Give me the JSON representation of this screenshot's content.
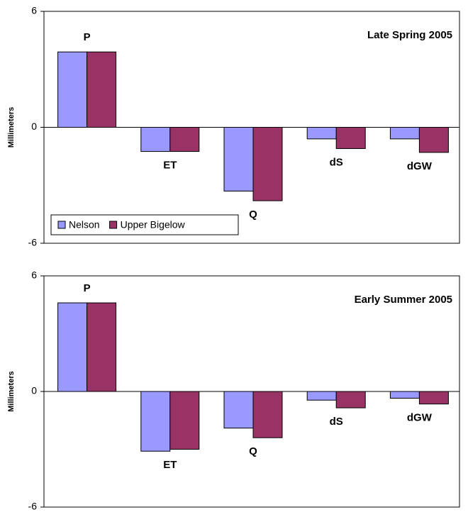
{
  "chart_data": [
    {
      "type": "bar",
      "title": "Late Spring 2005",
      "y_label": "Millimeters",
      "categories": [
        "P",
        "ET",
        "Q",
        "dS",
        "dGW"
      ],
      "series": [
        {
          "name": "Nelson",
          "color": "#9999ff",
          "values": [
            3.9,
            -1.25,
            -3.3,
            -0.6,
            -0.6
          ]
        },
        {
          "name": "Upper Bigelow",
          "color": "#993366",
          "values": [
            3.9,
            -1.25,
            -3.8,
            -1.1,
            -1.3
          ]
        }
      ],
      "ylim": [
        -6,
        6
      ],
      "yticks": [
        -6,
        0,
        6
      ],
      "legend": "lower left"
    },
    {
      "type": "bar",
      "title": "Early Summer 2005",
      "y_label": "Millimeters",
      "categories": [
        "P",
        "ET",
        "Q",
        "dS",
        "dGW"
      ],
      "series": [
        {
          "color": "#9999ff",
          "values": [
            4.6,
            -3.1,
            -1.9,
            -0.45,
            -0.35
          ]
        },
        {
          "color": "#993366",
          "values": [
            4.6,
            -3.0,
            -2.4,
            -0.85,
            -0.65
          ]
        }
      ],
      "ylim": [
        -6,
        6
      ],
      "yticks": [
        -6,
        0,
        6
      ]
    }
  ]
}
